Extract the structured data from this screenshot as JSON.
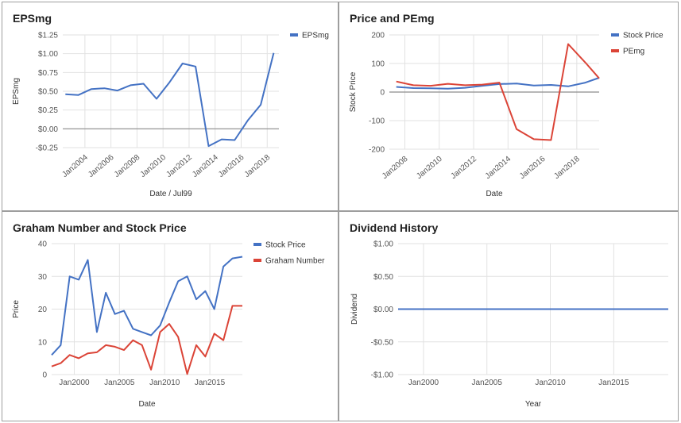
{
  "chart_data": [
    {
      "type": "line",
      "title": "EPSmg",
      "xlabel": "Date / Jul99",
      "ylabel": "EPSmg",
      "ylim": [
        -0.25,
        1.25
      ],
      "xlim": [
        2002.3,
        2018.9
      ],
      "ytick_labels": [
        "$1.25",
        "$1.00",
        "$0.75",
        "$0.50",
        "$0.25",
        "$0.00",
        "-$0.25"
      ],
      "ytick_values": [
        1.25,
        1.0,
        0.75,
        0.5,
        0.25,
        0.0,
        -0.25
      ],
      "xtick_labels": [
        "Jan2004",
        "Jan2006",
        "Jan2008",
        "Jan2010",
        "Jan2012",
        "Jan2014",
        "Jan2016",
        "Jan2018"
      ],
      "xtick_values": [
        2004,
        2006,
        2008,
        2010,
        2012,
        2014,
        2016,
        2018
      ],
      "grid": true,
      "zero_line": true,
      "legend_position": "right",
      "series": [
        {
          "name": "EPSmg",
          "color": "#4472c4",
          "x": [
            2002.5,
            2003.5,
            2004.5,
            2005.5,
            2006.5,
            2007.5,
            2008.5,
            2009.5,
            2010.5,
            2011.5,
            2012.5,
            2013.5,
            2014.5,
            2015.5,
            2016.5,
            2017.5,
            2018.5
          ],
          "y": [
            0.46,
            0.45,
            0.53,
            0.54,
            0.51,
            0.58,
            0.6,
            0.4,
            0.62,
            0.87,
            0.83,
            -0.23,
            -0.14,
            -0.15,
            0.11,
            0.32,
            1.01
          ]
        }
      ]
    },
    {
      "type": "line",
      "title": "Price and PEmg",
      "xlabel": "Date",
      "ylabel": "Stock Price",
      "ylim": [
        -200,
        200
      ],
      "xlim": [
        2007.1,
        2019.3
      ],
      "ytick_labels": [
        "200",
        "100",
        "0",
        "-100",
        "-200"
      ],
      "ytick_values": [
        200,
        100,
        0,
        -100,
        -200
      ],
      "xtick_labels": [
        "Jan2008",
        "Jan2010",
        "Jan2012",
        "Jan2014",
        "Jan2016",
        "Jan2018"
      ],
      "xtick_values": [
        2008,
        2010,
        2012,
        2014,
        2016,
        2018
      ],
      "grid": true,
      "zero_line": true,
      "legend_position": "right",
      "series": [
        {
          "name": "Stock Price",
          "color": "#4472c4",
          "x": [
            2007.5,
            2008.5,
            2009.5,
            2010.5,
            2011.5,
            2012.5,
            2013.5,
            2014.5,
            2015.5,
            2016.5,
            2017.5,
            2018.5,
            2019.3
          ],
          "y": [
            18,
            14,
            13,
            12,
            15,
            22,
            28,
            30,
            23,
            25,
            20,
            33,
            50
          ]
        },
        {
          "name": "PEmg",
          "color": "#db4437",
          "x": [
            2007.5,
            2008.5,
            2009.5,
            2010.5,
            2011.5,
            2012.5,
            2013.5,
            2014.5,
            2015.5,
            2016.5,
            2017.5,
            2018.5,
            2019.3
          ],
          "y": [
            37,
            24,
            22,
            29,
            24,
            26,
            33,
            -130,
            -165,
            -168,
            168,
            103,
            48
          ]
        }
      ]
    },
    {
      "type": "line",
      "title": "Graham Number and Stock Price",
      "xlabel": "Date",
      "ylabel": "Price",
      "ylim": [
        0,
        40
      ],
      "xlim": [
        1997.5,
        2018.6
      ],
      "ytick_labels": [
        "40",
        "30",
        "20",
        "10",
        "0"
      ],
      "ytick_values": [
        40,
        30,
        20,
        10,
        0
      ],
      "xtick_labels": [
        "Jan2000",
        "Jan2005",
        "Jan2010",
        "Jan2015"
      ],
      "xtick_values": [
        2000,
        2005,
        2010,
        2015
      ],
      "grid": true,
      "legend_position": "right",
      "series": [
        {
          "name": "Stock Price",
          "color": "#4472c4",
          "x": [
            1997.5,
            1998.5,
            1999.5,
            2000.5,
            2001.5,
            2002.5,
            2003.5,
            2004.5,
            2005.5,
            2006.5,
            2007.5,
            2008.5,
            2009.5,
            2010.5,
            2011.5,
            2012.5,
            2013.5,
            2014.5,
            2015.5,
            2016.5,
            2017.5,
            2018.6
          ],
          "y": [
            6,
            9,
            30,
            29,
            35,
            13,
            25,
            18.5,
            19.5,
            14,
            13,
            12,
            15,
            22,
            28.5,
            30,
            23,
            25.5,
            20,
            33,
            35.5,
            36
          ]
        },
        {
          "name": "Graham Number",
          "color": "#db4437",
          "x": [
            1997.5,
            1998.5,
            1999.5,
            2000.5,
            2001.5,
            2002.5,
            2003.5,
            2004.5,
            2005.5,
            2006.5,
            2007.5,
            2008.5,
            2009.5,
            2010.5,
            2011.5,
            2012.5,
            2013.5,
            2014.5,
            2015.5,
            2016.5,
            2017.5,
            2018.6
          ],
          "y": [
            2.5,
            3.5,
            6,
            5,
            6.5,
            6.8,
            9,
            8.5,
            7.5,
            10.5,
            9,
            1.5,
            13,
            15.5,
            11.5,
            0.2,
            9,
            5.5,
            12.5,
            10.5,
            21,
            21
          ]
        }
      ]
    },
    {
      "type": "line",
      "title": "Dividend History",
      "xlabel": "Year",
      "ylabel": "Dividend",
      "ylim": [
        -1.0,
        1.0
      ],
      "xlim": [
        1998.0,
        2019.3
      ],
      "ytick_labels": [
        "$1.00",
        "$0.50",
        "$0.00",
        "-$0.50",
        "-$1.00"
      ],
      "ytick_values": [
        1.0,
        0.5,
        0.0,
        -0.5,
        -1.0
      ],
      "xtick_labels": [
        "Jan2000",
        "Jan2005",
        "Jan2010",
        "Jan2015"
      ],
      "xtick_values": [
        2000,
        2005,
        2010,
        2015
      ],
      "grid": true,
      "legend_position": "none",
      "series": [
        {
          "color": "#4472c4",
          "x": [
            1998.0,
            2019.3
          ],
          "y": [
            0.0,
            0.0
          ]
        }
      ]
    }
  ]
}
